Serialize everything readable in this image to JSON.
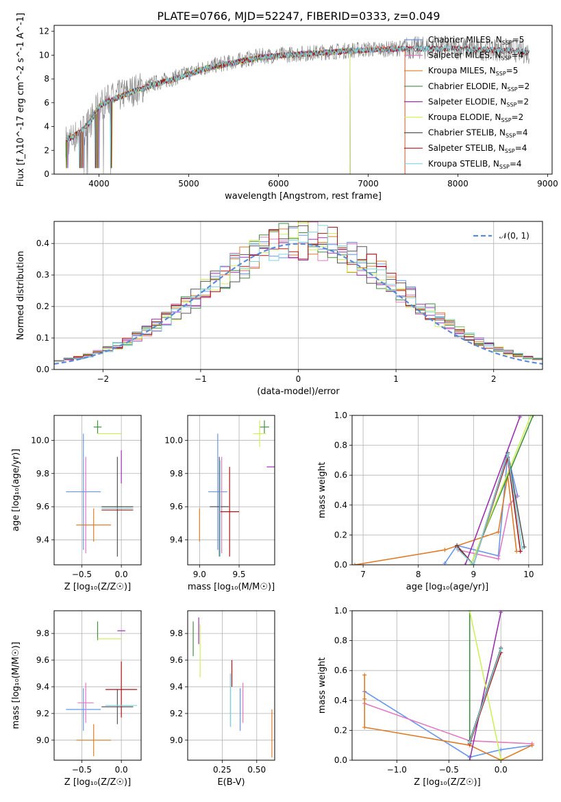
{
  "title": "PLATE=0766, MJD=52247, FIBERID=0333, z=0.049",
  "colors": {
    "Chabrier MILES": "#6495ed",
    "Salpeter MILES": "#e377c2",
    "Kroupa MILES": "#e07b24",
    "Chabrier ELODIE": "#3f8f3f",
    "Salpeter ELODIE": "#9b30b0",
    "Kroupa ELODIE": "#cdf05a",
    "Chabrier STELIB": "#555555",
    "Salpeter STELIB": "#b01010",
    "Kroupa STELIB": "#7fd3de"
  },
  "chart_data": [
    {
      "id": "spectrum",
      "type": "line",
      "xlabel": "wavelength [Angstrom, rest frame]",
      "ylabel": "Flux [f_λ10^-17 erg cm^-2 s^-1 A^-1]",
      "xlim": [
        3500,
        9050
      ],
      "ylim": [
        0,
        12.5
      ],
      "xticks": [
        4000,
        5000,
        6000,
        7000,
        8000,
        9000
      ],
      "yticks": [
        0,
        2,
        4,
        6,
        8,
        10,
        12
      ],
      "grid": false,
      "legend_position": "upper right",
      "data_color": "#808080",
      "data": [
        [
          3630,
          2.8
        ],
        [
          3700,
          3.0
        ],
        [
          3800,
          3.5
        ],
        [
          3900,
          4.3
        ],
        [
          4000,
          5.8
        ],
        [
          4100,
          6.2
        ],
        [
          4200,
          6.5
        ],
        [
          4300,
          6.8
        ],
        [
          4400,
          7.1
        ],
        [
          4500,
          7.3
        ],
        [
          4600,
          7.6
        ],
        [
          4800,
          8.0
        ],
        [
          5000,
          8.5
        ],
        [
          5200,
          9.0
        ],
        [
          5400,
          9.3
        ],
        [
          5600,
          9.6
        ],
        [
          5800,
          9.9
        ],
        [
          6000,
          10.0
        ],
        [
          6200,
          10.1
        ],
        [
          6400,
          10.2
        ],
        [
          6600,
          10.3
        ],
        [
          6800,
          10.4
        ],
        [
          7000,
          10.5
        ],
        [
          7200,
          10.5
        ],
        [
          7400,
          10.6
        ],
        [
          7600,
          10.6
        ],
        [
          7800,
          10.6
        ],
        [
          8000,
          10.6
        ],
        [
          8200,
          10.5
        ],
        [
          8400,
          10.5
        ],
        [
          8600,
          10.4
        ],
        [
          8800,
          10.2
        ]
      ],
      "model": [
        [
          3630,
          2.9
        ],
        [
          3700,
          3.1
        ],
        [
          3800,
          3.6
        ],
        [
          3900,
          4.4
        ],
        [
          4000,
          5.7
        ],
        [
          4100,
          6.1
        ],
        [
          4200,
          6.4
        ],
        [
          4300,
          6.7
        ],
        [
          4400,
          7.0
        ],
        [
          4500,
          7.2
        ],
        [
          4600,
          7.5
        ],
        [
          4800,
          7.9
        ],
        [
          5000,
          8.4
        ],
        [
          5200,
          8.9
        ],
        [
          5400,
          9.2
        ],
        [
          5600,
          9.5
        ],
        [
          5800,
          9.8
        ],
        [
          6000,
          9.95
        ],
        [
          6200,
          10.05
        ],
        [
          6400,
          10.15
        ],
        [
          6600,
          10.25
        ],
        [
          6800,
          10.35
        ],
        [
          7000,
          10.45
        ],
        [
          7200,
          10.5
        ],
        [
          7400,
          10.55
        ],
        [
          7600,
          10.55
        ],
        [
          7800,
          10.55
        ],
        [
          8000,
          10.55
        ],
        [
          8200,
          10.5
        ],
        [
          8400,
          10.45
        ],
        [
          8600,
          10.35
        ],
        [
          8800,
          10.2
        ]
      ],
      "series": [
        {
          "name": "Chabrier MILES",
          "nssp": "5",
          "end": 7410
        },
        {
          "name": "Salpeter MILES",
          "nssp": "4",
          "end": 7410
        },
        {
          "name": "Kroupa MILES",
          "nssp": "5",
          "end": 7410
        },
        {
          "name": "Chabrier ELODIE",
          "nssp": "2",
          "end": 6800
        },
        {
          "name": "Salpeter ELODIE",
          "nssp": "2",
          "end": 6800
        },
        {
          "name": "Kroupa ELODIE",
          "nssp": "2",
          "end": 6800
        },
        {
          "name": "Chabrier STELIB",
          "nssp": "4",
          "end": 8800
        },
        {
          "name": "Salpeter STELIB",
          "nssp": "4",
          "end": 8800
        },
        {
          "name": "Kroupa STELIB",
          "nssp": "4",
          "end": 8800
        }
      ]
    },
    {
      "id": "residuals",
      "type": "line",
      "xlabel": "(data-model)/error",
      "ylabel": "Normed distribution",
      "xlim": [
        -2.5,
        2.5
      ],
      "ylim": [
        0,
        0.47
      ],
      "xticks": [
        -2,
        -1,
        0,
        1,
        2
      ],
      "yticks": [
        0.0,
        0.1,
        0.2,
        0.3,
        0.4
      ],
      "grid": true,
      "legend_position": "upper right",
      "legend_label": "𝒩(0, 1)",
      "bin_width": 0.1
    },
    {
      "id": "age_vs_Z",
      "type": "scatter",
      "xlabel": "Z [log₁₀(Z/Z☉)]",
      "ylabel": "age  [log₁₀(age/yr)]",
      "xlim": [
        -0.85,
        0.25
      ],
      "ylim": [
        9.25,
        10.15
      ],
      "xticks": [
        -0.5,
        0.0
      ],
      "yticks": [
        9.4,
        9.6,
        9.8,
        10.0
      ],
      "grid": true,
      "points": [
        {
          "s": "Chabrier MILES",
          "x": -0.48,
          "y": 9.69,
          "xe": 0.22,
          "ye": 0.35
        },
        {
          "s": "Salpeter MILES",
          "x": -0.45,
          "y": 9.61,
          "xe": 0.0,
          "ye": 0.29
        },
        {
          "s": "Kroupa MILES",
          "x": -0.35,
          "y": 9.49,
          "xe": 0.22,
          "ye": 0.1
        },
        {
          "s": "Chabrier ELODIE",
          "x": -0.3,
          "y": 10.08,
          "xe": 0.05,
          "ye": 0.04
        },
        {
          "s": "Salpeter ELODIE",
          "x": 0.0,
          "y": 9.84,
          "xe": 0.0,
          "ye": 0.1
        },
        {
          "s": "Kroupa ELODIE",
          "x": -0.15,
          "y": 10.04,
          "xe": 0.15,
          "ye": 0.0
        },
        {
          "s": "Chabrier STELIB",
          "x": -0.05,
          "y": 9.6,
          "xe": 0.2,
          "ye": 0.3
        },
        {
          "s": "Salpeter STELIB",
          "x": -0.05,
          "y": 9.58,
          "xe": 0.2,
          "ye": 0.0
        },
        {
          "s": "Kroupa STELIB",
          "x": -0.05,
          "y": 9.59,
          "xe": 0.2,
          "ye": 0.0
        }
      ]
    },
    {
      "id": "age_vs_mass",
      "type": "scatter",
      "xlabel": "mass [log₁₀(M/M☉)]",
      "ylabel": "",
      "xlim": [
        8.85,
        9.95
      ],
      "ylim": [
        9.25,
        10.15
      ],
      "xticks": [
        9.0,
        9.5
      ],
      "yticks": [
        9.4,
        9.6,
        9.8,
        10.0
      ],
      "grid": true,
      "points": [
        {
          "s": "Chabrier MILES",
          "x": 9.23,
          "y": 9.69,
          "xe": 0.12,
          "ye": 0.35
        },
        {
          "s": "Salpeter MILES",
          "x": 9.28,
          "y": 9.61,
          "xe": 0.0,
          "ye": 0.29
        },
        {
          "s": "Kroupa MILES",
          "x": 9.0,
          "y": 9.49,
          "xe": 0.0,
          "ye": 0.1
        },
        {
          "s": "Chabrier ELODIE",
          "x": 9.82,
          "y": 10.08,
          "xe": 0.06,
          "ye": 0.04
        },
        {
          "s": "Salpeter ELODIE",
          "x": 9.91,
          "y": 9.84,
          "xe": 0.06,
          "ye": 0.0
        },
        {
          "s": "Kroupa ELODIE",
          "x": 9.76,
          "y": 10.04,
          "xe": 0.08,
          "ye": 0.08
        },
        {
          "s": "Chabrier STELIB",
          "x": 9.25,
          "y": 9.6,
          "xe": 0.12,
          "ye": 0.3
        },
        {
          "s": "Salpeter STELIB",
          "x": 9.38,
          "y": 9.57,
          "xe": 0.12,
          "ye": 0.27
        },
        {
          "s": "Kroupa STELIB",
          "x": 9.26,
          "y": 9.59,
          "xe": 0.0,
          "ye": 0.29
        }
      ]
    },
    {
      "id": "weight_vs_age",
      "type": "line",
      "xlabel": "age  [log₁₀(age/yr)]",
      "ylabel": "mass weight",
      "xlim": [
        6.8,
        10.25
      ],
      "ylim": [
        0,
        1.0
      ],
      "xticks": [
        7,
        8,
        9,
        10
      ],
      "yticks": [
        0.0,
        0.2,
        0.4,
        0.6,
        0.8,
        1.0
      ],
      "grid": true,
      "series": [
        {
          "s": "Chabrier MILES",
          "x": [
            8.48,
            8.7,
            9.45,
            9.62,
            9.8
          ],
          "y": [
            0.01,
            0.13,
            0.06,
            0.74,
            0.46
          ]
        },
        {
          "s": "Salpeter MILES",
          "x": [
            8.72,
            9.45,
            9.65,
            9.78
          ],
          "y": [
            0.1,
            0.04,
            0.4,
            0.46
          ]
        },
        {
          "s": "Kroupa MILES",
          "x": [
            6.85,
            8.48,
            9.45,
            9.62,
            9.78
          ],
          "y": [
            0.0,
            0.1,
            0.22,
            0.6,
            0.09
          ]
        },
        {
          "s": "Chabrier ELODIE",
          "x": [
            8.95,
            10.08
          ],
          "y": [
            0.0,
            1.0
          ]
        },
        {
          "s": "Salpeter ELODIE",
          "x": [
            8.85,
            9.84
          ],
          "y": [
            0.0,
            0.99
          ]
        },
        {
          "s": "Kroupa ELODIE",
          "x": [
            8.95,
            10.04
          ],
          "y": [
            0.0,
            1.0
          ]
        },
        {
          "s": "Chabrier STELIB",
          "x": [
            8.7,
            9.0,
            9.62,
            9.92
          ],
          "y": [
            0.13,
            0.0,
            0.75,
            0.12
          ]
        },
        {
          "s": "Salpeter STELIB",
          "x": [
            8.7,
            9.0,
            9.62,
            9.85
          ],
          "y": [
            0.12,
            0.0,
            0.72,
            0.09
          ]
        },
        {
          "s": "Kroupa STELIB",
          "x": [
            8.7,
            9.0,
            9.62,
            9.88
          ],
          "y": [
            0.11,
            0.0,
            0.74,
            0.11
          ]
        }
      ]
    },
    {
      "id": "mass_vs_Z",
      "type": "scatter",
      "xlabel": "Z [log₁₀(Z/Z☉)]",
      "ylabel": "mass [log₁₀(M/M☉)]",
      "xlim": [
        -0.85,
        0.25
      ],
      "ylim": [
        8.85,
        9.97
      ],
      "xticks": [
        -0.5,
        0.0
      ],
      "yticks": [
        9.0,
        9.2,
        9.4,
        9.6,
        9.8
      ],
      "grid": true,
      "points": [
        {
          "s": "Chabrier MILES",
          "x": -0.48,
          "y": 9.23,
          "xe": 0.22,
          "ye": 0.16
        },
        {
          "s": "Salpeter MILES",
          "x": -0.45,
          "y": 9.28,
          "xe": 0.1,
          "ye": 0.15
        },
        {
          "s": "Kroupa MILES",
          "x": -0.35,
          "y": 9.0,
          "xe": 0.22,
          "ye": 0.12
        },
        {
          "s": "Chabrier ELODIE",
          "x": -0.3,
          "y": 9.82,
          "xe": 0.0,
          "ye": 0.07
        },
        {
          "s": "Salpeter ELODIE",
          "x": 0.0,
          "y": 9.82,
          "xe": 0.05,
          "ye": 0.0
        },
        {
          "s": "Kroupa ELODIE",
          "x": -0.15,
          "y": 9.76,
          "xe": 0.15,
          "ye": 0.0
        },
        {
          "s": "Chabrier STELIB",
          "x": -0.05,
          "y": 9.25,
          "xe": 0.2,
          "ye": 0.13
        },
        {
          "s": "Salpeter STELIB",
          "x": 0.0,
          "y": 9.38,
          "xe": 0.2,
          "ye": 0.21
        },
        {
          "s": "Kroupa STELIB",
          "x": 0.0,
          "y": 9.26,
          "xe": 0.2,
          "ye": 0.0
        }
      ]
    },
    {
      "id": "mass_vs_EBV",
      "type": "scatter",
      "xlabel": "E(B-V)",
      "ylabel": "",
      "xlim": [
        0.0,
        0.63
      ],
      "ylim": [
        8.85,
        9.97
      ],
      "xticks": [
        0.25,
        0.5
      ],
      "yticks": [
        9.0,
        9.2,
        9.4,
        9.6,
        9.8
      ],
      "grid": true,
      "points": [
        {
          "s": "Chabrier MILES",
          "x": 0.38,
          "y": 9.23,
          "xe": 0.0,
          "ye": 0.16
        },
        {
          "s": "Salpeter MILES",
          "x": 0.4,
          "y": 9.28,
          "xe": 0.0,
          "ye": 0.15
        },
        {
          "s": "Kroupa MILES",
          "x": 0.61,
          "y": 9.05,
          "xe": 0.0,
          "ye": 0.18
        },
        {
          "s": "Chabrier ELODIE",
          "x": 0.04,
          "y": 9.76,
          "xe": 0.0,
          "ye": 0.13
        },
        {
          "s": "Salpeter ELODIE",
          "x": 0.08,
          "y": 9.82,
          "xe": 0.0,
          "ye": 0.1
        },
        {
          "s": "Kroupa ELODIE",
          "x": 0.09,
          "y": 9.67,
          "xe": 0.0,
          "ye": 0.2
        },
        {
          "s": "Chabrier STELIB",
          "x": 0.31,
          "y": 9.3,
          "xe": 0.0,
          "ye": 0.2
        },
        {
          "s": "Salpeter STELIB",
          "x": 0.32,
          "y": 9.5,
          "xe": 0.0,
          "ye": 0.1
        },
        {
          "s": "Kroupa STELIB",
          "x": 0.31,
          "y": 9.3,
          "xe": 0.0,
          "ye": 0.2
        }
      ]
    },
    {
      "id": "weight_vs_Z",
      "type": "line",
      "xlabel": "Z [log₁₀(Z/Z☉)]",
      "ylabel": "mass weight",
      "xlim": [
        -1.43,
        0.4
      ],
      "ylim": [
        0,
        1.0
      ],
      "xticks": [
        -1.0,
        -0.5,
        0.0
      ],
      "yticks": [
        0.0,
        0.2,
        0.4,
        0.6,
        0.8,
        1.0
      ],
      "grid": true,
      "series": [
        {
          "s": "Chabrier MILES",
          "x": [
            -1.31,
            -0.3,
            0.0,
            0.3
          ],
          "y": [
            0.46,
            0.02,
            0.07,
            0.1
          ]
        },
        {
          "s": "Salpeter MILES",
          "x": [
            -1.31,
            -0.3,
            0.3
          ],
          "y": [
            0.38,
            0.13,
            0.11
          ]
        },
        {
          "s": "Kroupa MILES",
          "x": [
            -1.31,
            -1.31,
            -1.31,
            -0.3,
            0.0,
            0.3
          ],
          "y": [
            0.57,
            0.41,
            0.22,
            0.1,
            0.0,
            0.1
          ]
        },
        {
          "s": "Chabrier ELODIE",
          "x": [
            -0.3,
            -0.3
          ],
          "y": [
            1.0,
            0.12
          ]
        },
        {
          "s": "Salpeter ELODIE",
          "x": [
            -0.3,
            0.0
          ],
          "y": [
            0.0,
            0.99
          ]
        },
        {
          "s": "Kroupa ELODIE",
          "x": [
            -0.3,
            0.0
          ],
          "y": [
            1.0,
            0.01
          ]
        },
        {
          "s": "Chabrier STELIB",
          "x": [
            -0.3,
            0.0
          ],
          "y": [
            0.13,
            0.75
          ]
        },
        {
          "s": "Salpeter STELIB",
          "x": [
            -0.3,
            0.0
          ],
          "y": [
            0.11,
            0.72
          ]
        },
        {
          "s": "Kroupa STELIB",
          "x": [
            -0.3,
            0.0
          ],
          "y": [
            0.12,
            0.74
          ]
        }
      ]
    }
  ]
}
